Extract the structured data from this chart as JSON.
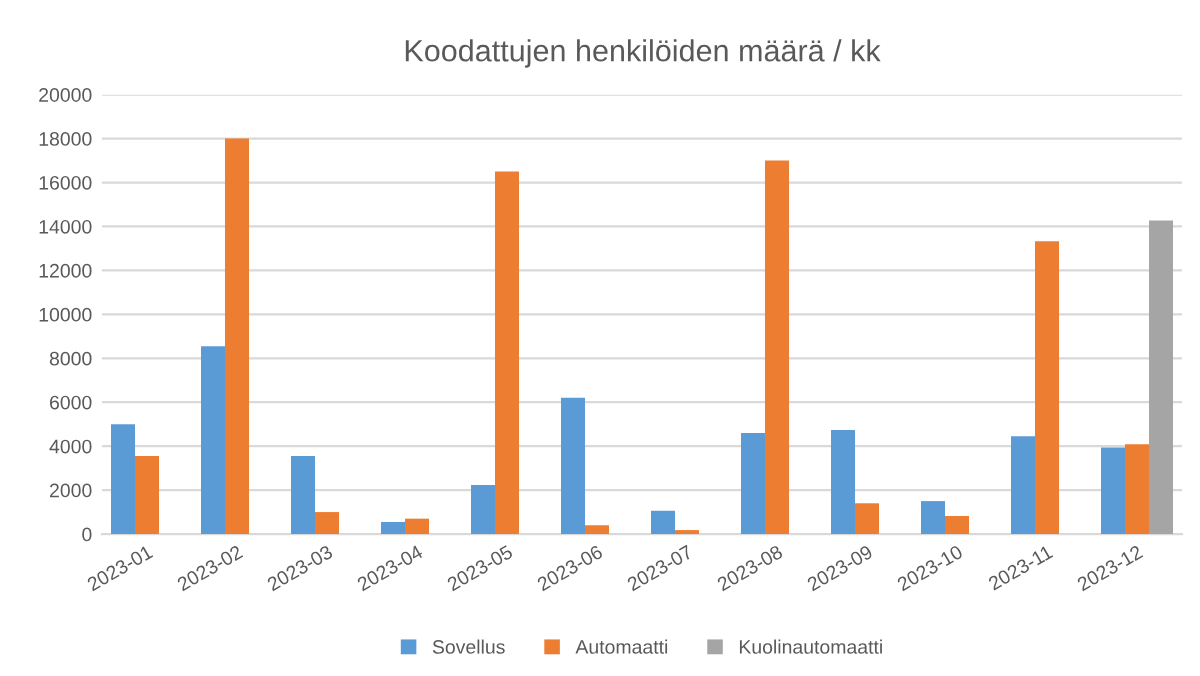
{
  "chart_data": {
    "type": "bar",
    "title": "Koodattujen henkilöiden määrä / kk",
    "categories": [
      "2023-01",
      "2023-02",
      "2023-03",
      "2023-04",
      "2023-05",
      "2023-06",
      "2023-07",
      "2023-08",
      "2023-09",
      "2023-10",
      "2023-11",
      "2023-12"
    ],
    "series": [
      {
        "name": "Sovellus",
        "color": "#5b9bd5",
        "values": [
          5000,
          8550,
          3550,
          550,
          2230,
          6200,
          1060,
          4600,
          4730,
          1500,
          4450,
          3940
        ]
      },
      {
        "name": "Automaatti",
        "color": "#ed7d31",
        "values": [
          3550,
          18000,
          1000,
          700,
          16500,
          400,
          180,
          17000,
          1400,
          820,
          13330,
          4090
        ]
      },
      {
        "name": "Kuolinautomaatti",
        "color": "#a5a5a5",
        "values": [
          null,
          null,
          null,
          null,
          null,
          null,
          null,
          null,
          null,
          null,
          null,
          14270
        ]
      }
    ],
    "ylim": [
      0,
      20000
    ],
    "yticks": [
      0,
      2000,
      4000,
      6000,
      8000,
      10000,
      12000,
      14000,
      16000,
      18000,
      20000
    ],
    "grid": "y",
    "legend": "bottom"
  }
}
